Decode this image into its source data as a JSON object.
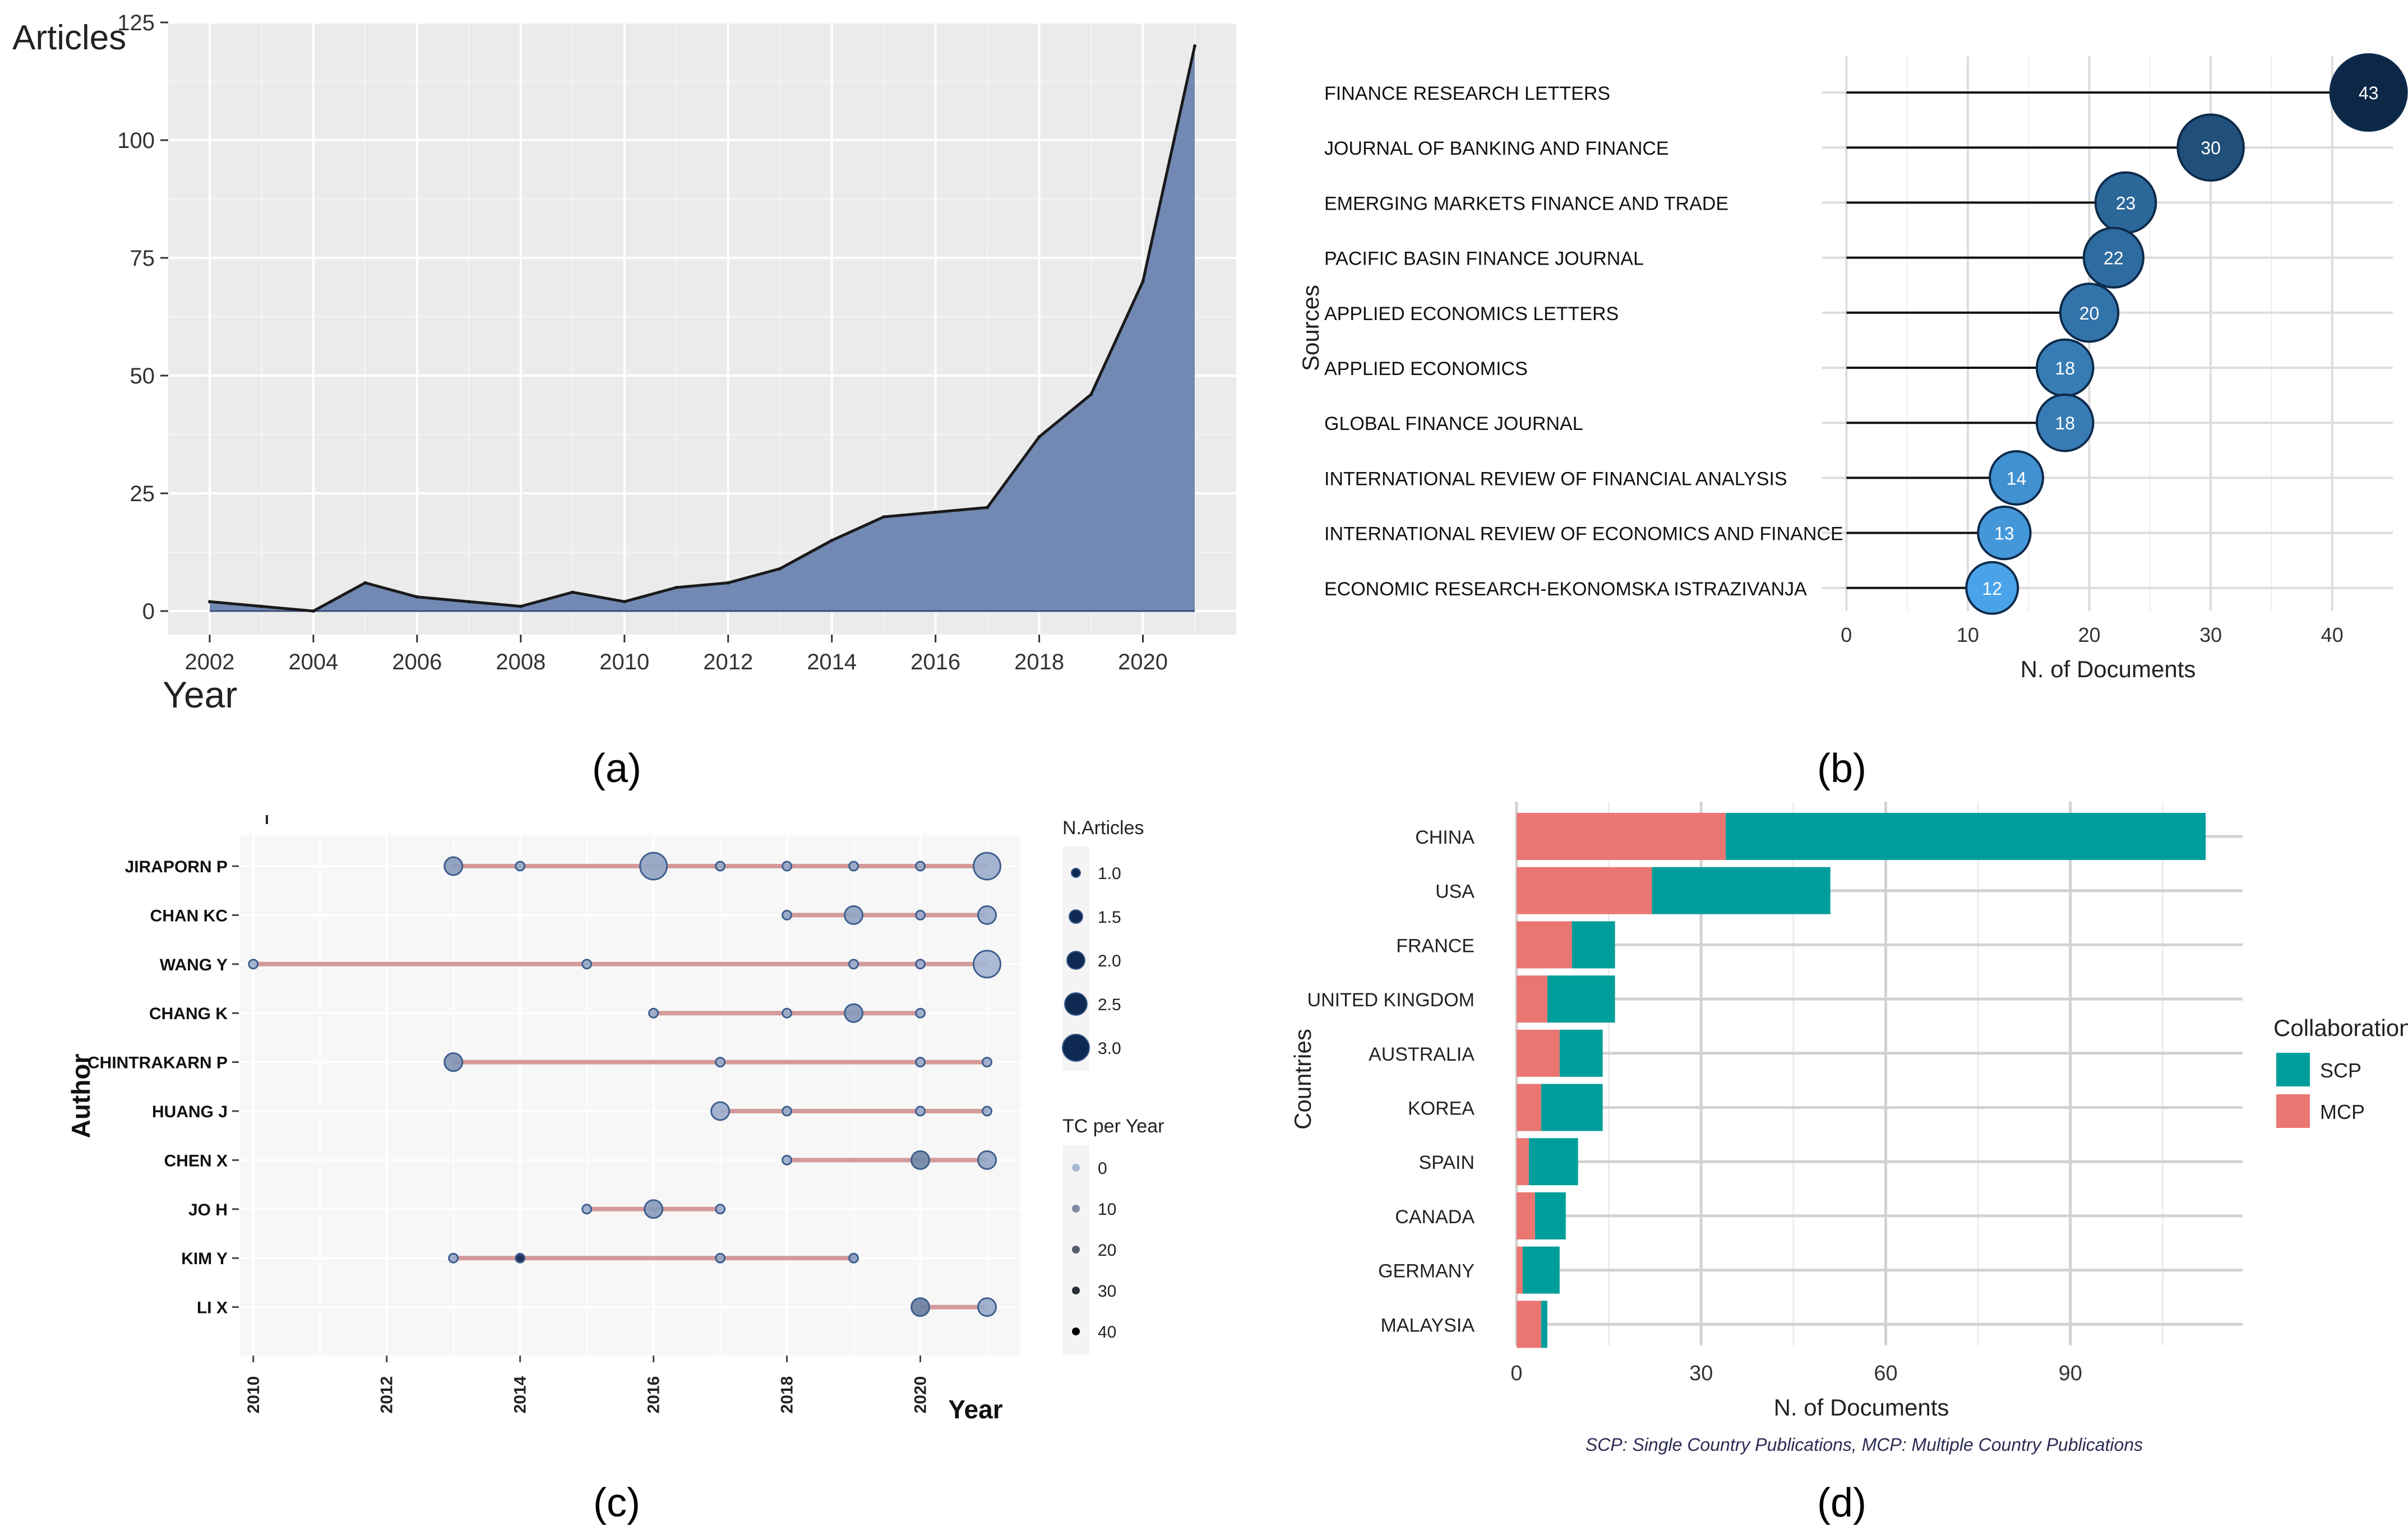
{
  "colors": {
    "panel_bg": "#ebebeb",
    "grid": "#ffffff",
    "area_fill": "#7189b3",
    "area_line": "#1a1a1a",
    "lollipop_dark": "#0d2847",
    "lollipop_light": "#4aa3e8",
    "timeline_bg": "#f7f7f7",
    "timeline_line": "#d49a9a",
    "timeline_dot_light": "#a8b9d6",
    "timeline_dot_dark": "#0e2a52",
    "scp": "#009e9a",
    "mcp": "#ea7672",
    "caption_text": "#2c2c54"
  },
  "panel_labels": [
    "(a)",
    "(b)",
    "(c)",
    "(d)"
  ],
  "chart_data": [
    {
      "id": "a",
      "type": "area",
      "title": "",
      "xlabel": "Year",
      "ylabel": "Articles",
      "x": [
        2002,
        2003,
        2004,
        2005,
        2006,
        2007,
        2008,
        2009,
        2010,
        2011,
        2012,
        2013,
        2014,
        2015,
        2016,
        2017,
        2018,
        2019,
        2020,
        2021
      ],
      "y": [
        2,
        1,
        0,
        6,
        3,
        2,
        1,
        4,
        2,
        5,
        6,
        9,
        15,
        20,
        21,
        22,
        37,
        46,
        70,
        120
      ],
      "xlim": [
        2001.2,
        2021.8
      ],
      "ylim": [
        -5,
        125
      ],
      "xticks": [
        "2002",
        "2004",
        "2006",
        "2008",
        "2010",
        "2012",
        "2014",
        "2016",
        "2018",
        "2020"
      ],
      "yticks": [
        "0",
        "25",
        "50",
        "75",
        "100",
        "125"
      ],
      "grid": true
    },
    {
      "id": "b",
      "type": "lollipop",
      "title": "",
      "xlabel": "N. of Documents",
      "ylabel": "Sources",
      "categories": [
        "FINANCE RESEARCH LETTERS",
        "JOURNAL OF BANKING AND FINANCE",
        "EMERGING MARKETS FINANCE AND TRADE",
        "PACIFIC BASIN FINANCE JOURNAL",
        "APPLIED ECONOMICS LETTERS",
        "APPLIED ECONOMICS",
        "GLOBAL FINANCE JOURNAL",
        "INTERNATIONAL REVIEW OF FINANCIAL ANALYSIS",
        "INTERNATIONAL REVIEW OF ECONOMICS AND FINANCE",
        "ECONOMIC RESEARCH-EKONOMSKA ISTRAZIVANJA"
      ],
      "values": [
        43,
        30,
        23,
        22,
        20,
        18,
        18,
        14,
        13,
        12
      ],
      "data_labels": [
        "43",
        "30",
        "23",
        "22",
        "20",
        "18",
        "18",
        "14",
        "13",
        "12"
      ],
      "xlim": [
        -2,
        45
      ],
      "xticks": [
        "0",
        "10",
        "20",
        "30",
        "40"
      ],
      "grid": true
    },
    {
      "id": "c",
      "type": "scatter",
      "subtype": "author-production-over-time",
      "title": "",
      "xlabel": "Year",
      "ylabel": "Author",
      "authors": [
        "JIRAPORN P",
        "CHAN KC",
        "WANG Y",
        "CHANG K",
        "CHINTRAKARN P",
        "HUANG J",
        "CHEN X",
        "JO H",
        "KIM Y",
        "LI X"
      ],
      "series": [
        {
          "name": "JIRAPORN P",
          "span": [
            2013,
            2021
          ],
          "points": [
            {
              "year": 2013,
              "articles": 2,
              "tc": 8
            },
            {
              "year": 2014,
              "articles": 1,
              "tc": 4
            },
            {
              "year": 2016,
              "articles": 3,
              "tc": 6
            },
            {
              "year": 2017,
              "articles": 1,
              "tc": 4
            },
            {
              "year": 2018,
              "articles": 1,
              "tc": 5
            },
            {
              "year": 2019,
              "articles": 1,
              "tc": 4
            },
            {
              "year": 2020,
              "articles": 1,
              "tc": 4
            },
            {
              "year": 2021,
              "articles": 3,
              "tc": 3
            }
          ]
        },
        {
          "name": "CHAN KC",
          "span": [
            2018,
            2021
          ],
          "points": [
            {
              "year": 2018,
              "articles": 1,
              "tc": 5
            },
            {
              "year": 2019,
              "articles": 2,
              "tc": 6
            },
            {
              "year": 2020,
              "articles": 1,
              "tc": 3
            },
            {
              "year": 2021,
              "articles": 2,
              "tc": 3
            }
          ]
        },
        {
          "name": "WANG Y",
          "span": [
            2010,
            2021
          ],
          "points": [
            {
              "year": 2010,
              "articles": 1,
              "tc": 2
            },
            {
              "year": 2015,
              "articles": 1,
              "tc": 4
            },
            {
              "year": 2019,
              "articles": 1,
              "tc": 3
            },
            {
              "year": 2020,
              "articles": 1,
              "tc": 3
            },
            {
              "year": 2021,
              "articles": 3,
              "tc": 1
            }
          ]
        },
        {
          "name": "CHANG K",
          "span": [
            2016,
            2020
          ],
          "points": [
            {
              "year": 2016,
              "articles": 1,
              "tc": 3
            },
            {
              "year": 2018,
              "articles": 1,
              "tc": 4
            },
            {
              "year": 2019,
              "articles": 2,
              "tc": 9
            },
            {
              "year": 2020,
              "articles": 1,
              "tc": 3
            }
          ]
        },
        {
          "name": "CHINTRAKARN P",
          "span": [
            2013,
            2021
          ],
          "points": [
            {
              "year": 2013,
              "articles": 2,
              "tc": 10
            },
            {
              "year": 2017,
              "articles": 1,
              "tc": 4
            },
            {
              "year": 2020,
              "articles": 1,
              "tc": 3
            },
            {
              "year": 2021,
              "articles": 1,
              "tc": 3
            }
          ]
        },
        {
          "name": "HUANG J",
          "span": [
            2017,
            2021
          ],
          "points": [
            {
              "year": 2017,
              "articles": 2,
              "tc": 3
            },
            {
              "year": 2018,
              "articles": 1,
              "tc": 4
            },
            {
              "year": 2020,
              "articles": 1,
              "tc": 3
            },
            {
              "year": 2021,
              "articles": 1,
              "tc": 3
            }
          ]
        },
        {
          "name": "CHEN X",
          "span": [
            2018,
            2021
          ],
          "points": [
            {
              "year": 2018,
              "articles": 1,
              "tc": 3
            },
            {
              "year": 2020,
              "articles": 2,
              "tc": 14
            },
            {
              "year": 2021,
              "articles": 2,
              "tc": 5
            }
          ]
        },
        {
          "name": "JO H",
          "span": [
            2015,
            2017
          ],
          "points": [
            {
              "year": 2015,
              "articles": 1,
              "tc": 3
            },
            {
              "year": 2016,
              "articles": 2,
              "tc": 8
            },
            {
              "year": 2017,
              "articles": 1,
              "tc": 3
            }
          ]
        },
        {
          "name": "KIM Y",
          "span": [
            2013,
            2019
          ],
          "points": [
            {
              "year": 2013,
              "articles": 1,
              "tc": 4
            },
            {
              "year": 2014,
              "articles": 1,
              "tc": 40
            },
            {
              "year": 2017,
              "articles": 1,
              "tc": 5
            },
            {
              "year": 2019,
              "articles": 1,
              "tc": 8
            }
          ]
        },
        {
          "name": "LI X",
          "span": [
            2020,
            2021
          ],
          "points": [
            {
              "year": 2020,
              "articles": 2,
              "tc": 16
            },
            {
              "year": 2021,
              "articles": 2,
              "tc": 4
            }
          ]
        }
      ],
      "xlim": [
        2009.8,
        2021.5
      ],
      "xticks": [
        "2010",
        "2012",
        "2014",
        "2016",
        "2018",
        "2020"
      ],
      "legend_articles_title": "N.Articles",
      "legend_articles": [
        "1.0",
        "1.5",
        "2.0",
        "2.5",
        "3.0"
      ],
      "legend_tc_title": "TC per Year",
      "legend_tc": [
        "0",
        "10",
        "20",
        "30",
        "40"
      ],
      "grid": true
    },
    {
      "id": "d",
      "type": "bar",
      "orientation": "horizontal",
      "stacked": true,
      "title": "",
      "xlabel": "N. of Documents",
      "ylabel": "Countries",
      "categories": [
        "CHINA",
        "USA",
        "FRANCE",
        "UNITED KINGDOM",
        "AUSTRALIA",
        "KOREA",
        "SPAIN",
        "CANADA",
        "GERMANY",
        "MALAYSIA"
      ],
      "series": [
        {
          "name": "MCP",
          "values": [
            34,
            22,
            9,
            5,
            7,
            4,
            2,
            3,
            1,
            4
          ]
        },
        {
          "name": "SCP",
          "values": [
            78,
            29,
            7,
            11,
            7,
            10,
            8,
            5,
            6,
            1
          ]
        }
      ],
      "xlim": [
        0,
        118
      ],
      "xticks": [
        "0",
        "30",
        "60",
        "90"
      ],
      "legend_title": "Collaboration",
      "legend_entries": [
        "SCP",
        "MCP"
      ],
      "caption": "SCP: Single Country Publications, MCP: Multiple Country Publications",
      "grid": true
    }
  ]
}
